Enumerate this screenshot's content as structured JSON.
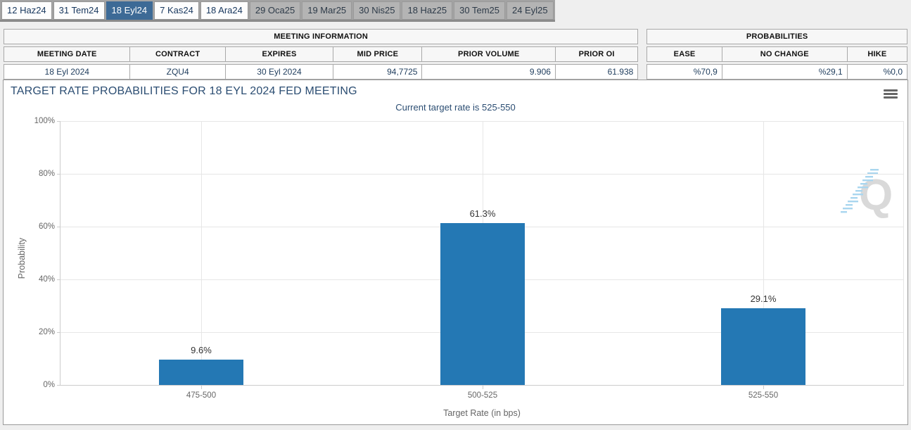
{
  "tabs": {
    "items": [
      {
        "label": "12 Haz24",
        "state": "normal"
      },
      {
        "label": "31 Tem24",
        "state": "normal"
      },
      {
        "label": "18 Eyl24",
        "state": "selected"
      },
      {
        "label": "7 Kas24",
        "state": "normal"
      },
      {
        "label": "18 Ara24",
        "state": "normal"
      },
      {
        "label": "29 Oca25",
        "state": "disabled"
      },
      {
        "label": "19 Mar25",
        "state": "disabled"
      },
      {
        "label": "30 Nis25",
        "state": "disabled"
      },
      {
        "label": "18 Haz25",
        "state": "disabled"
      },
      {
        "label": "30 Tem25",
        "state": "disabled"
      },
      {
        "label": "24 Eyl25",
        "state": "disabled"
      }
    ]
  },
  "meeting_information": {
    "title": "MEETING INFORMATION",
    "columns": [
      "MEETING DATE",
      "CONTRACT",
      "EXPIRES",
      "MID PRICE",
      "PRIOR VOLUME",
      "PRIOR OI"
    ],
    "values": [
      "18 Eyl 2024",
      "ZQU4",
      "30 Eyl 2024",
      "94,7725",
      "9.906",
      "61.938"
    ]
  },
  "probabilities": {
    "title": "PROBABILITIES",
    "columns": [
      "EASE",
      "NO CHANGE",
      "HIKE"
    ],
    "values": [
      "%70,9",
      "%29,1",
      "%0,0"
    ]
  },
  "chart": {
    "title": "TARGET RATE PROBABILITIES FOR 18 EYL 2024 FED MEETING",
    "subtitle": "Current target rate is 525-550",
    "watermark_letter": "Q",
    "colors": {
      "bar": "#2478b4",
      "title_text": "#2b4d72",
      "selected_tab": "#3d6a96",
      "gridline": "#e6e6e6",
      "axis_line": "#cccccc",
      "tick_text": "#666666"
    }
  },
  "chart_data": {
    "type": "bar",
    "categories": [
      "475-500",
      "500-525",
      "525-550"
    ],
    "values": [
      9.6,
      61.3,
      29.1
    ],
    "point_labels": [
      "9.6%",
      "61.3%",
      "29.1%"
    ],
    "title": "TARGET RATE PROBABILITIES FOR 18 EYL 2024 FED MEETING",
    "subtitle": "Current target rate is 525-550",
    "xlabel": "Target Rate (in bps)",
    "ylabel": "Probability",
    "ylim": [
      0,
      100
    ],
    "yticks": [
      0,
      20,
      40,
      60,
      80,
      100
    ],
    "ytick_suffix": "%",
    "grid": true,
    "legend": false
  }
}
